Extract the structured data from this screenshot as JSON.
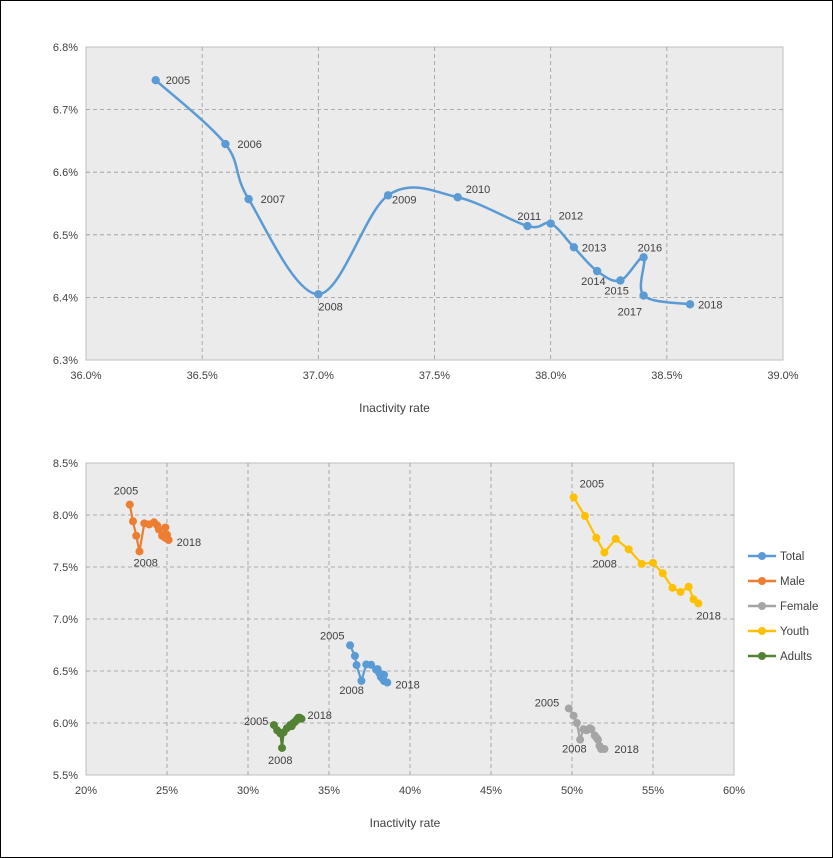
{
  "colors": {
    "total": "#5b9bd5",
    "male": "#ed7d31",
    "female": "#a5a5a5",
    "youth": "#ffc000",
    "adults": "#548235",
    "plot_bg": "#ebebeb",
    "grid": "#9a9a9a"
  },
  "chart_data": [
    {
      "type": "scatter",
      "xlabel": "Inactivity rate",
      "ylabel": "",
      "xlim": [
        0.36,
        0.39
      ],
      "ylim": [
        0.063,
        0.068
      ],
      "x_ticks": [
        "36.0%",
        "36.5%",
        "37.0%",
        "37.5%",
        "38.0%",
        "38.5%",
        "39.0%"
      ],
      "y_ticks": [
        "6.3%",
        "6.4%",
        "6.5%",
        "6.6%",
        "6.7%",
        "6.8%"
      ],
      "grid": true,
      "smooth": true,
      "series": [
        {
          "key": "total",
          "points": [
            {
              "label": "2005",
              "x": 0.363,
              "y": 0.06747
            },
            {
              "label": "2006",
              "x": 0.366,
              "y": 0.06645
            },
            {
              "label": "2007",
              "x": 0.367,
              "y": 0.06557
            },
            {
              "label": "2008",
              "x": 0.37,
              "y": 0.06405
            },
            {
              "label": "2009",
              "x": 0.373,
              "y": 0.06563
            },
            {
              "label": "2010",
              "x": 0.376,
              "y": 0.0656
            },
            {
              "label": "2011",
              "x": 0.379,
              "y": 0.06514
            },
            {
              "label": "2012",
              "x": 0.38,
              "y": 0.06518
            },
            {
              "label": "2013",
              "x": 0.381,
              "y": 0.0648
            },
            {
              "label": "2014",
              "x": 0.382,
              "y": 0.06442
            },
            {
              "label": "2015",
              "x": 0.383,
              "y": 0.06427
            },
            {
              "label": "2016",
              "x": 0.384,
              "y": 0.06464
            },
            {
              "label": "2017",
              "x": 0.384,
              "y": 0.06403
            },
            {
              "label": "2018",
              "x": 0.386,
              "y": 0.06389
            }
          ]
        }
      ]
    },
    {
      "type": "scatter",
      "xlabel": "Inactivity rate",
      "ylabel": "",
      "xlim": [
        0.2,
        0.6
      ],
      "ylim": [
        0.055,
        0.085
      ],
      "x_ticks": [
        "20%",
        "25%",
        "30%",
        "35%",
        "40%",
        "45%",
        "50%",
        "55%",
        "60%"
      ],
      "y_ticks": [
        "5.5%",
        "6.0%",
        "6.5%",
        "7.0%",
        "7.5%",
        "8.0%",
        "8.5%"
      ],
      "grid": true,
      "smooth": false,
      "legend": {
        "position": "right",
        "entries": [
          "Total",
          "Male",
          "Female",
          "Youth",
          "Adults"
        ]
      },
      "series": [
        {
          "key": "male",
          "name": "Male",
          "points": [
            {
              "label": "2005",
              "x": 0.227,
              "y": 0.081
            },
            {
              "label": "",
              "x": 0.229,
              "y": 0.0794
            },
            {
              "label": "",
              "x": 0.231,
              "y": 0.078
            },
            {
              "label": "2008",
              "x": 0.233,
              "y": 0.0765
            },
            {
              "label": "",
              "x": 0.236,
              "y": 0.0792
            },
            {
              "label": "",
              "x": 0.239,
              "y": 0.0791
            },
            {
              "label": "",
              "x": 0.242,
              "y": 0.0793
            },
            {
              "label": "",
              "x": 0.244,
              "y": 0.079
            },
            {
              "label": "",
              "x": 0.245,
              "y": 0.0786
            },
            {
              "label": "",
              "x": 0.247,
              "y": 0.078
            },
            {
              "label": "",
              "x": 0.249,
              "y": 0.0788
            },
            {
              "label": "",
              "x": 0.249,
              "y": 0.0778
            },
            {
              "label": "",
              "x": 0.25,
              "y": 0.0781
            },
            {
              "label": "2018",
              "x": 0.251,
              "y": 0.0776
            }
          ]
        },
        {
          "key": "total",
          "name": "Total",
          "points": [
            {
              "label": "2005",
              "x": 0.363,
              "y": 0.06747
            },
            {
              "label": "",
              "x": 0.366,
              "y": 0.06645
            },
            {
              "label": "",
              "x": 0.367,
              "y": 0.06557
            },
            {
              "label": "2008",
              "x": 0.37,
              "y": 0.06405
            },
            {
              "label": "",
              "x": 0.373,
              "y": 0.06563
            },
            {
              "label": "",
              "x": 0.376,
              "y": 0.0656
            },
            {
              "label": "",
              "x": 0.379,
              "y": 0.06514
            },
            {
              "label": "",
              "x": 0.38,
              "y": 0.06518
            },
            {
              "label": "",
              "x": 0.381,
              "y": 0.0648
            },
            {
              "label": "",
              "x": 0.382,
              "y": 0.06442
            },
            {
              "label": "",
              "x": 0.383,
              "y": 0.06427
            },
            {
              "label": "",
              "x": 0.384,
              "y": 0.06464
            },
            {
              "label": "",
              "x": 0.384,
              "y": 0.06403
            },
            {
              "label": "2018",
              "x": 0.386,
              "y": 0.06389
            }
          ]
        },
        {
          "key": "adults",
          "name": "Adults",
          "points": [
            {
              "label": "2005",
              "x": 0.316,
              "y": 0.0598
            },
            {
              "label": "",
              "x": 0.318,
              "y": 0.0593
            },
            {
              "label": "",
              "x": 0.32,
              "y": 0.059
            },
            {
              "label": "2008",
              "x": 0.321,
              "y": 0.0576
            },
            {
              "label": "",
              "x": 0.322,
              "y": 0.0591
            },
            {
              "label": "",
              "x": 0.324,
              "y": 0.0595
            },
            {
              "label": "",
              "x": 0.326,
              "y": 0.0598
            },
            {
              "label": "",
              "x": 0.327,
              "y": 0.0597
            },
            {
              "label": "",
              "x": 0.328,
              "y": 0.06
            },
            {
              "label": "",
              "x": 0.329,
              "y": 0.0601
            },
            {
              "label": "",
              "x": 0.33,
              "y": 0.0603
            },
            {
              "label": "",
              "x": 0.331,
              "y": 0.0605
            },
            {
              "label": "",
              "x": 0.332,
              "y": 0.0605
            },
            {
              "label": "2018",
              "x": 0.333,
              "y": 0.0604
            }
          ]
        },
        {
          "key": "female",
          "name": "Female",
          "points": [
            {
              "label": "2005",
              "x": 0.498,
              "y": 0.0614
            },
            {
              "label": "",
              "x": 0.501,
              "y": 0.0607
            },
            {
              "label": "",
              "x": 0.503,
              "y": 0.06
            },
            {
              "label": "2008",
              "x": 0.505,
              "y": 0.0584
            },
            {
              "label": "",
              "x": 0.507,
              "y": 0.0594
            },
            {
              "label": "",
              "x": 0.509,
              "y": 0.0593
            },
            {
              "label": "",
              "x": 0.511,
              "y": 0.0595
            },
            {
              "label": "",
              "x": 0.512,
              "y": 0.0594
            },
            {
              "label": "",
              "x": 0.514,
              "y": 0.0588
            },
            {
              "label": "",
              "x": 0.515,
              "y": 0.0586
            },
            {
              "label": "",
              "x": 0.516,
              "y": 0.0584
            },
            {
              "label": "",
              "x": 0.517,
              "y": 0.0578
            },
            {
              "label": "",
              "x": 0.518,
              "y": 0.0575
            },
            {
              "label": "2018",
              "x": 0.52,
              "y": 0.0575
            }
          ]
        },
        {
          "key": "youth",
          "name": "Youth",
          "points": [
            {
              "label": "2005",
              "x": 0.501,
              "y": 0.0817
            },
            {
              "label": "",
              "x": 0.508,
              "y": 0.0799
            },
            {
              "label": "",
              "x": 0.515,
              "y": 0.0778
            },
            {
              "label": "2008",
              "x": 0.52,
              "y": 0.0764
            },
            {
              "label": "",
              "x": 0.527,
              "y": 0.0777
            },
            {
              "label": "",
              "x": 0.535,
              "y": 0.0767
            },
            {
              "label": "",
              "x": 0.543,
              "y": 0.0753
            },
            {
              "label": "",
              "x": 0.55,
              "y": 0.0754
            },
            {
              "label": "",
              "x": 0.556,
              "y": 0.0744
            },
            {
              "label": "",
              "x": 0.562,
              "y": 0.073
            },
            {
              "label": "",
              "x": 0.567,
              "y": 0.0726
            },
            {
              "label": "",
              "x": 0.572,
              "y": 0.0731
            },
            {
              "label": "",
              "x": 0.575,
              "y": 0.0719
            },
            {
              "label": "2018",
              "x": 0.578,
              "y": 0.0715
            }
          ]
        }
      ]
    }
  ]
}
